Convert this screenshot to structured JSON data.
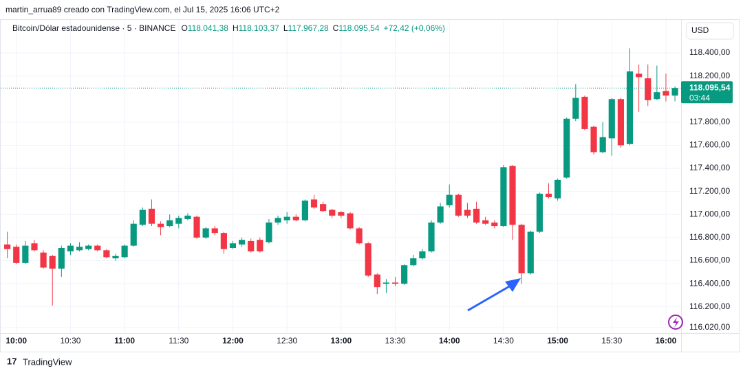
{
  "credit": "martin_arrua89 creado con TradingView.com, el Jul 15, 2025 16:06 UTC+2",
  "footer": "TradingView",
  "chart_data": {
    "type": "candlestick",
    "title": "Bitcoin/Dólar estadounidense · 5 · BINANCE",
    "ohlc_legend": [
      {
        "key": "O",
        "value": "118.041,38"
      },
      {
        "key": "H",
        "value": "118.103,37"
      },
      {
        "key": "L",
        "value": "117.967,28"
      },
      {
        "key": "C",
        "value": "118.095,54"
      }
    ],
    "change": "+72,42 (+0,06%)",
    "currency": "USD",
    "last_price": {
      "value": 118095.54,
      "label": "118.095,54"
    },
    "countdown": "03:44",
    "up_color": "#089981",
    "down_color": "#f23645",
    "x": [
      595,
      600,
      605,
      610,
      615,
      620,
      625,
      630,
      635,
      640,
      645,
      650,
      655,
      660,
      665,
      670,
      675,
      680,
      685,
      690,
      695,
      700,
      705,
      710,
      715,
      720,
      725,
      730,
      735,
      740,
      745,
      750,
      755,
      760,
      765,
      770,
      775,
      780,
      785,
      790,
      795,
      800,
      805,
      810,
      815,
      820,
      825,
      830,
      835,
      840,
      845,
      850,
      855,
      860,
      865,
      870,
      875,
      880,
      885,
      890,
      895,
      900,
      905,
      910,
      915,
      920,
      925,
      930,
      935,
      940,
      945,
      950,
      955,
      960,
      965
    ],
    "open": [
      116740,
      116720,
      116580,
      116750,
      116670,
      116640,
      116530,
      116680,
      116690,
      116700,
      116730,
      116690,
      116620,
      116630,
      116730,
      116910,
      117050,
      116920,
      116900,
      116920,
      116960,
      116980,
      116800,
      116880,
      116840,
      116710,
      116740,
      116770,
      116780,
      116760,
      116930,
      116950,
      116980,
      116950,
      117130,
      117090,
      117040,
      117020,
      117010,
      116880,
      116750,
      116480,
      116400,
      116410,
      116400,
      116560,
      116620,
      116680,
      116930,
      117080,
      117170,
      117040,
      117050,
      116950,
      116930,
      116900,
      117420,
      116910,
      116490,
      116850,
      117180,
      117140,
      117320,
      117830,
      118020,
      117760,
      117540,
      117660,
      118000,
      117610,
      118220,
      118180,
      118000,
      118070,
      118030
    ],
    "high": [
      116850,
      116740,
      116770,
      116780,
      116690,
      116650,
      116730,
      116750,
      116760,
      116740,
      116740,
      116700,
      116660,
      116740,
      116950,
      117060,
      117130,
      116940,
      117000,
      116990,
      117010,
      116990,
      116890,
      116900,
      116850,
      116770,
      116800,
      116790,
      116800,
      116960,
      116990,
      117020,
      117000,
      117130,
      117170,
      117110,
      117050,
      117030,
      117020,
      116890,
      116760,
      116490,
      116440,
      116460,
      116570,
      116650,
      116700,
      116950,
      117100,
      117260,
      117180,
      117100,
      117110,
      116980,
      116950,
      117430,
      117430,
      116920,
      116860,
      117190,
      117270,
      117310,
      117840,
      118130,
      118030,
      117770,
      117800,
      118010,
      118010,
      118440,
      118300,
      118300,
      118290,
      118220,
      118110
    ],
    "low": [
      116620,
      116570,
      116570,
      116680,
      116530,
      116210,
      116460,
      116650,
      116680,
      116690,
      116680,
      116620,
      116600,
      116620,
      116720,
      116900,
      116900,
      116820,
      116890,
      116880,
      116950,
      116790,
      116790,
      116820,
      116660,
      116700,
      116720,
      116670,
      116670,
      116750,
      116910,
      116920,
      116940,
      116940,
      117050,
      117020,
      116970,
      116970,
      116870,
      116740,
      116460,
      116310,
      116320,
      116380,
      116390,
      116550,
      116610,
      116670,
      116920,
      117060,
      116980,
      116970,
      116920,
      116910,
      116880,
      116890,
      116780,
      116400,
      116480,
      116840,
      117140,
      117120,
      117310,
      117810,
      117730,
      117520,
      117530,
      117510,
      117580,
      117600,
      117890,
      117940,
      117990,
      117980,
      117980
    ],
    "close": [
      116700,
      116580,
      116730,
      116690,
      116540,
      116530,
      116710,
      116730,
      116720,
      116730,
      116690,
      116630,
      116640,
      116730,
      116920,
      117040,
      116920,
      116890,
      116950,
      116970,
      116990,
      116800,
      116880,
      116840,
      116700,
      116750,
      116780,
      116680,
      116680,
      116930,
      116970,
      116980,
      116950,
      117120,
      117060,
      117030,
      116990,
      116990,
      116880,
      116750,
      116470,
      116370,
      116410,
      116400,
      116560,
      116620,
      116680,
      116930,
      117070,
      117170,
      116990,
      116990,
      116930,
      116920,
      116900,
      117410,
      116910,
      116490,
      116850,
      117180,
      117150,
      117300,
      117830,
      118010,
      117740,
      117540,
      117670,
      118000,
      117600,
      118240,
      118190,
      117990,
      118060,
      118030,
      118095.54
    ],
    "xlim": [
      594,
      968.4
    ],
    "ylim": [
      115972,
      118680
    ],
    "xticks": [
      {
        "value": 600,
        "label": "10:00"
      },
      {
        "value": 630,
        "label": "10:30"
      },
      {
        "value": 660,
        "label": "11:00"
      },
      {
        "value": 690,
        "label": "11:30"
      },
      {
        "value": 720,
        "label": "12:00"
      },
      {
        "value": 750,
        "label": "12:30"
      },
      {
        "value": 780,
        "label": "13:00"
      },
      {
        "value": 810,
        "label": "13:30"
      },
      {
        "value": 840,
        "label": "14:00"
      },
      {
        "value": 870,
        "label": "14:30"
      },
      {
        "value": 900,
        "label": "15:00"
      },
      {
        "value": 930,
        "label": "15:30"
      },
      {
        "value": 960,
        "label": "16:00"
      }
    ],
    "yticks": [
      {
        "value": 116020,
        "label": "116.020,00"
      },
      {
        "value": 116200,
        "label": "116.200,00"
      },
      {
        "value": 116400,
        "label": "116.400,00"
      },
      {
        "value": 116600,
        "label": "116.600,00"
      },
      {
        "value": 116800,
        "label": "116.800,00"
      },
      {
        "value": 117000,
        "label": "117.000,00"
      },
      {
        "value": 117200,
        "label": "117.200,00"
      },
      {
        "value": 117400,
        "label": "117.400,00"
      },
      {
        "value": 117600,
        "label": "117.600,00"
      },
      {
        "value": 117800,
        "label": "117.800,00"
      },
      {
        "value": 118200,
        "label": "118.200,00"
      },
      {
        "value": 118400,
        "label": "118.400,00"
      }
    ],
    "grid": true
  }
}
